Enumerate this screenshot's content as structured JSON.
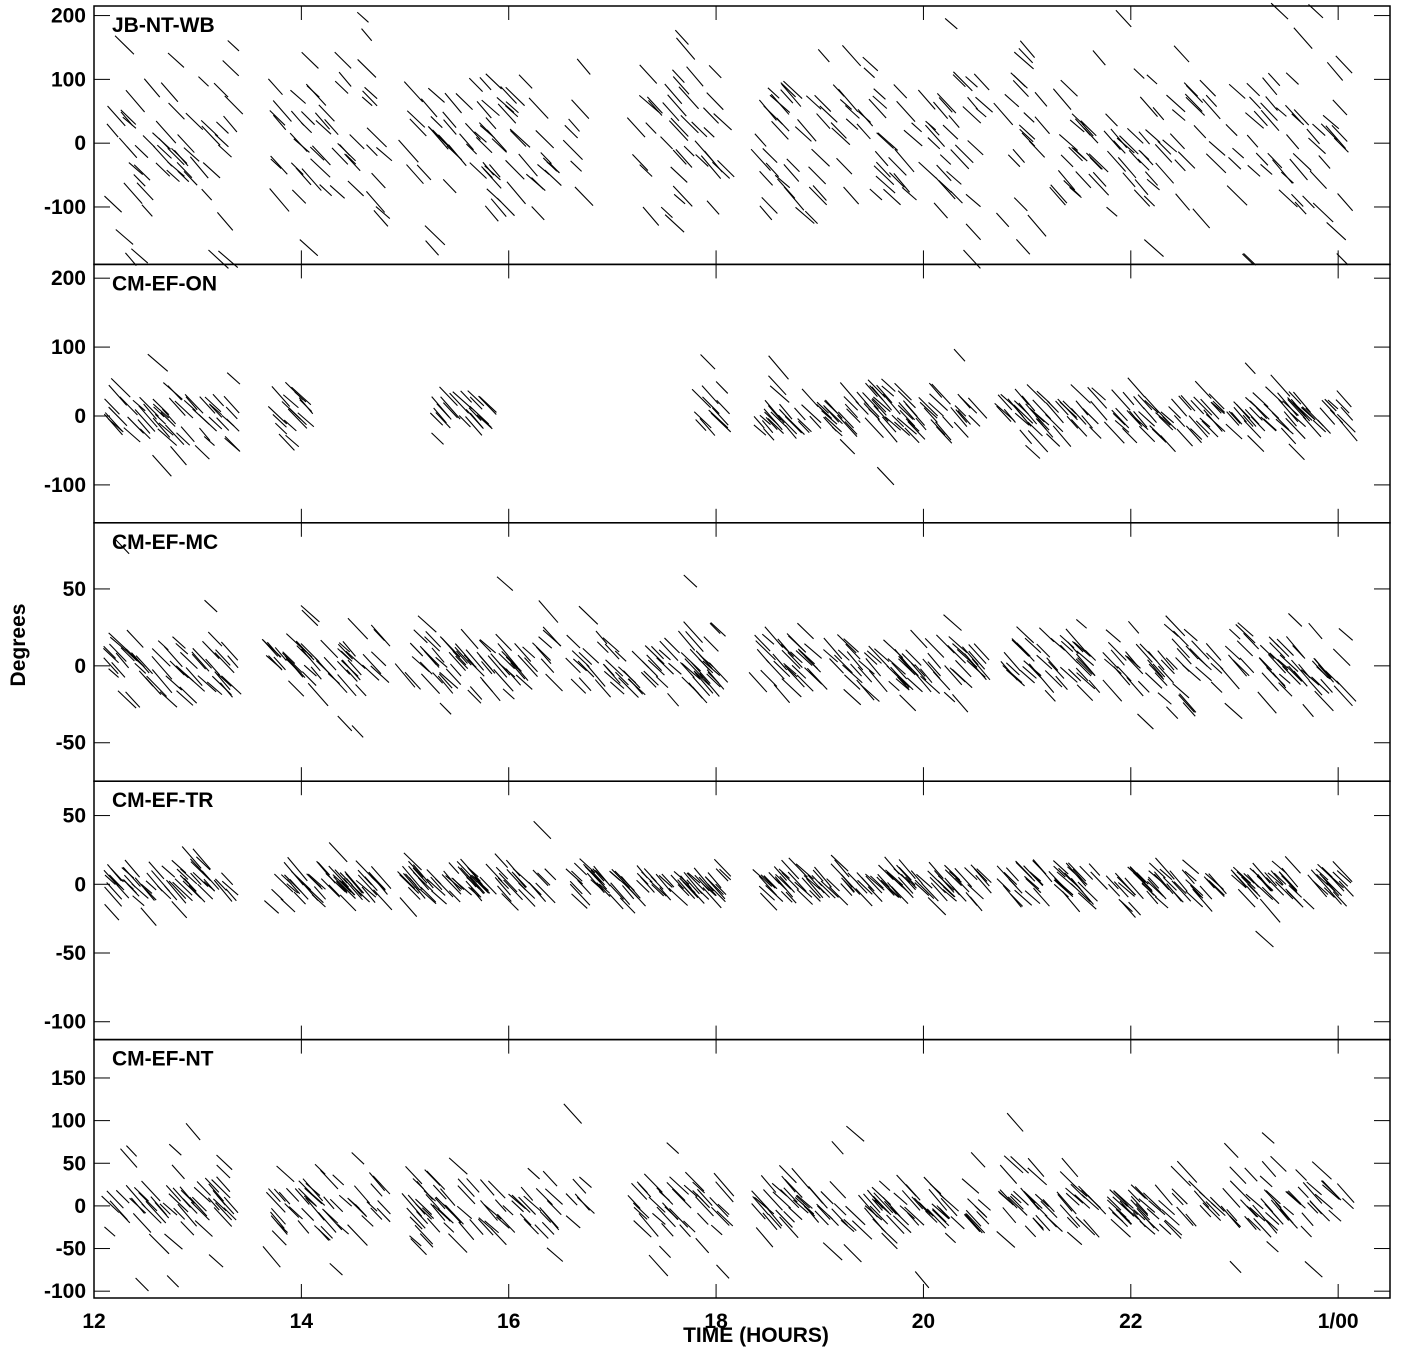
{
  "chart_data": {
    "type": "scatter",
    "xlabel": "TIME (HOURS)",
    "ylabel": "Degrees",
    "xlim": [
      12,
      24.5
    ],
    "x_ticks": [
      {
        "value": 12,
        "label": "12"
      },
      {
        "value": 14,
        "label": "14"
      },
      {
        "value": 16,
        "label": "16"
      },
      {
        "value": 18,
        "label": "18"
      },
      {
        "value": 20,
        "label": "20"
      },
      {
        "value": 22,
        "label": "22"
      },
      {
        "value": 24,
        "label": "1/00"
      }
    ],
    "scan_windows": [
      [
        12.15,
        13.35
      ],
      [
        13.7,
        14.8
      ],
      [
        15.0,
        16.45
      ],
      [
        16.6,
        16.75
      ],
      [
        17.2,
        18.1
      ],
      [
        18.4,
        19.35
      ],
      [
        19.4,
        20.6
      ],
      [
        20.75,
        21.7
      ],
      [
        21.8,
        22.85
      ],
      [
        22.95,
        24.1
      ]
    ],
    "panels": [
      {
        "label": "JB-NT-WB",
        "ylim": [
          -190,
          215
        ],
        "yticks": [
          200,
          100,
          0,
          -100
        ],
        "spread": 110,
        "windows": [
          0,
          1,
          2,
          3,
          4,
          5,
          6,
          7,
          8,
          9
        ],
        "start_hint": 12.05
      },
      {
        "label": "CM-EF-ON",
        "ylim": [
          -155,
          220
        ],
        "yticks": [
          200,
          100,
          0,
          -100
        ],
        "spread": 32,
        "windows": [
          0,
          1,
          2,
          4,
          5,
          6,
          7,
          8,
          9
        ],
        "partial": {
          "1": [
            13.7,
            14.05
          ],
          "2": [
            15.3,
            15.8
          ],
          "4": [
            17.85,
            18.1
          ]
        }
      },
      {
        "label": "CM-EF-MC",
        "ylim": [
          -75,
          93
        ],
        "yticks": [
          50,
          0,
          -50
        ],
        "spread": 18,
        "windows": [
          0,
          1,
          2,
          3,
          5,
          6,
          7,
          8,
          9
        ],
        "window_override": {
          "3": [
            16.6,
            18.1
          ]
        }
      },
      {
        "label": "CM-EF-TR",
        "ylim": [
          -113,
          75
        ],
        "yticks": [
          50,
          0,
          -50,
          -100
        ],
        "spread": 11,
        "windows": [
          0,
          1,
          2,
          3,
          5,
          6,
          7,
          8,
          9
        ],
        "window_override": {
          "3": [
            16.6,
            18.1
          ]
        }
      },
      {
        "label": "CM-EF-NT",
        "ylim": [
          -108,
          195
        ],
        "yticks": [
          150,
          100,
          50,
          0,
          -50,
          -100
        ],
        "spread": 35,
        "windows": [
          0,
          1,
          2,
          3,
          4,
          5,
          6,
          7,
          8,
          9
        ]
      }
    ]
  }
}
